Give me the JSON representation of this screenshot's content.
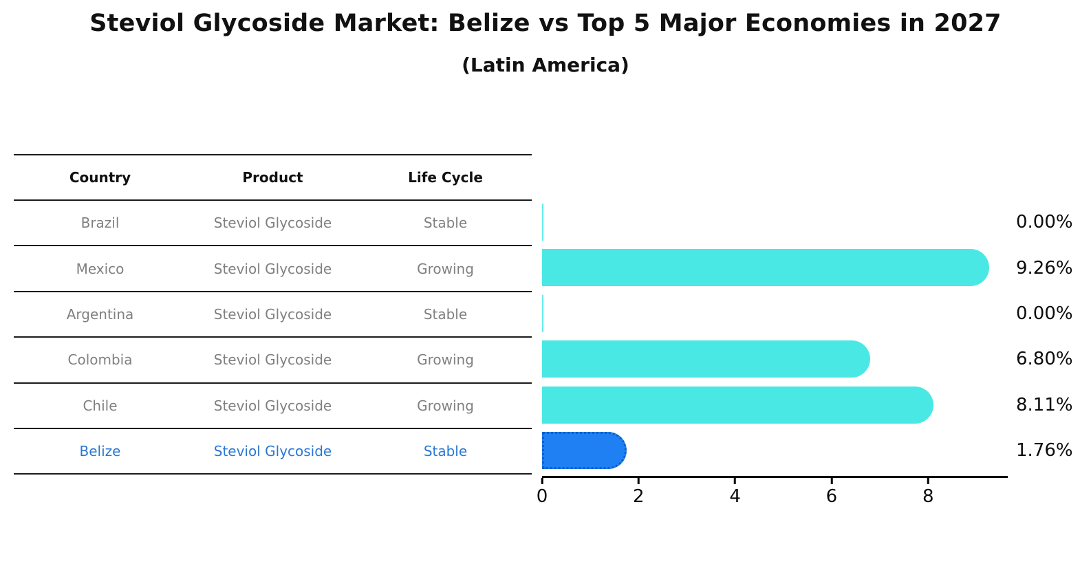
{
  "title": "Steviol Glycoside Market: Belize vs Top 5 Major Economies in 2027",
  "subtitle": "(Latin America)",
  "table": {
    "headers": [
      "Country",
      "Product",
      "Life Cycle"
    ],
    "rows": [
      {
        "country": "Brazil",
        "product": "Steviol Glycoside",
        "life_cycle": "Stable",
        "highlight": false
      },
      {
        "country": "Mexico",
        "product": "Steviol Glycoside",
        "life_cycle": "Growing",
        "highlight": false
      },
      {
        "country": "Argentina",
        "product": "Steviol Glycoside",
        "life_cycle": "Stable",
        "highlight": false
      },
      {
        "country": "Colombia",
        "product": "Steviol Glycoside",
        "life_cycle": "Growing",
        "highlight": false
      },
      {
        "country": "Chile",
        "product": "Steviol Glycoside",
        "life_cycle": "Growing",
        "highlight": false
      },
      {
        "country": "Belize",
        "product": "Steviol Glycoside",
        "life_cycle": "Stable",
        "highlight": true
      }
    ]
  },
  "chart_data": {
    "type": "bar",
    "orientation": "horizontal",
    "title": "Steviol Glycoside Market: Belize vs Top 5 Major Economies in 2027 (Latin America)",
    "categories": [
      "Brazil",
      "Mexico",
      "Argentina",
      "Colombia",
      "Chile",
      "Belize"
    ],
    "values": [
      0.0,
      9.26,
      0.0,
      6.8,
      8.11,
      1.76
    ],
    "value_labels": [
      "0.00%",
      "9.26%",
      "0.00%",
      "6.80%",
      "8.11%",
      "1.76%"
    ],
    "x_ticks": [
      "0",
      "2",
      "4",
      "6",
      "8"
    ],
    "xlim": [
      0,
      9.65
    ],
    "xlabel": "",
    "ylabel": "",
    "grid": false,
    "legend": false,
    "bar_color": "#4AE8E4",
    "highlight_bar_color": "#1E80F2",
    "highlight_index": 5
  },
  "colors": {
    "highlight_text": "#2878D2",
    "muted_text": "#808080",
    "header_text": "#111111",
    "axis": "#000000",
    "table_line": "#1A1A1A",
    "background": "#FFFFFF"
  }
}
